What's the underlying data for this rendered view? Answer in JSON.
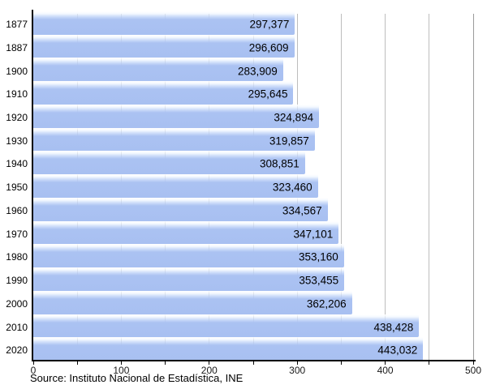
{
  "chart_data": {
    "type": "bar",
    "orientation": "horizontal",
    "title": "",
    "xlabel": "",
    "ylabel": "",
    "categories": [
      "1877",
      "1887",
      "1900",
      "1910",
      "1920",
      "1930",
      "1940",
      "1950",
      "1960",
      "1970",
      "1980",
      "1990",
      "2000",
      "2010",
      "2020"
    ],
    "values": [
      297377,
      296609,
      283909,
      295645,
      324894,
      319857,
      308851,
      323460,
      334567,
      347101,
      353160,
      353455,
      362206,
      438428,
      443032
    ],
    "value_labels": [
      "297,377",
      "296,609",
      "283,909",
      "295,645",
      "324,894",
      "319,857",
      "308,851",
      "323,460",
      "334,567",
      "347,101",
      "353,160",
      "353,455",
      "362,206",
      "438,428",
      "443,032"
    ],
    "xlim": [
      0,
      500000
    ],
    "x_ticks": [
      {
        "value": 0,
        "label": "0"
      },
      {
        "value": 100000,
        "label": "100"
      },
      {
        "value": 200000,
        "label": "200"
      },
      {
        "value": 300000,
        "label": "300"
      },
      {
        "value": 400000,
        "label": "400"
      },
      {
        "value": 500000,
        "label": "500"
      }
    ],
    "minor_grid_step": 50000,
    "grid": true,
    "legend_position": "none",
    "colors": {
      "bar": "#abc2f2",
      "gridline": "#bdbdbd",
      "axis": "#000000",
      "text": "#000000"
    },
    "source": "Source: Instituto Nacional de Estadística, INE"
  }
}
